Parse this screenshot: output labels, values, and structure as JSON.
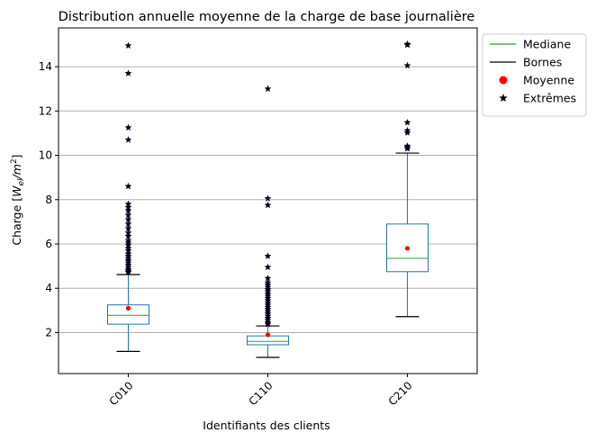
{
  "chart_data": {
    "type": "box",
    "title": "Distribution annuelle moyenne de la charge de base journalière",
    "xlabel": "Identifiants des clients",
    "ylabel_prefix": "Charge [",
    "ylabel_unit_base": "W",
    "ylabel_unit_sub": "el",
    "ylabel_unit_div": "/m",
    "ylabel_unit_sup": "2",
    "ylabel_suffix": "]",
    "ylim": [
      0.15,
      15.75
    ],
    "yticks": [
      2,
      4,
      6,
      8,
      10,
      12,
      14
    ],
    "grid_y": true,
    "categories": [
      "C010",
      "C110",
      "C210"
    ],
    "boxes": [
      {
        "category": "C010",
        "whisker_low": 1.15,
        "q1": 2.38,
        "median": 2.78,
        "q3": 3.25,
        "whisker_high": 4.62,
        "mean": 3.1,
        "outliers": [
          14.95,
          13.7,
          11.25,
          10.7,
          8.6,
          7.8,
          7.65,
          7.5,
          7.3,
          7.1,
          6.9,
          6.7,
          6.5,
          6.35,
          6.15,
          6.05,
          5.95,
          5.8,
          5.7,
          5.55,
          5.45,
          5.35,
          5.25,
          5.15,
          5.05,
          4.95,
          4.85,
          4.78,
          4.72
        ]
      },
      {
        "category": "C110",
        "whisker_low": 0.88,
        "q1": 1.45,
        "median": 1.6,
        "q3": 1.85,
        "whisker_high": 2.3,
        "mean": 1.9,
        "outliers": [
          13.0,
          8.05,
          7.75,
          5.45,
          4.95,
          4.45,
          4.25,
          4.15,
          4.05,
          3.95,
          3.85,
          3.75,
          3.65,
          3.55,
          3.45,
          3.35,
          3.25,
          3.15,
          3.05,
          2.95,
          2.85,
          2.75,
          2.65,
          2.55,
          2.45,
          2.38
        ]
      },
      {
        "category": "C210",
        "whisker_low": 2.72,
        "q1": 4.75,
        "median": 5.35,
        "q3": 6.9,
        "whisker_high": 10.1,
        "mean": 5.8,
        "outliers": [
          15.02,
          14.98,
          14.05,
          11.48,
          11.12,
          11.02,
          10.42,
          10.36,
          10.3
        ]
      }
    ],
    "legend": {
      "placement": "outside-right-top",
      "entries": [
        {
          "label": "Mediane",
          "kind": "line",
          "color": "#2ca02c"
        },
        {
          "label": "Bornes",
          "kind": "line",
          "color": "#000000"
        },
        {
          "label": "Moyenne",
          "kind": "dot",
          "color": "#ff0000"
        },
        {
          "label": "Extrêmes",
          "kind": "star",
          "color": "#000000"
        }
      ]
    },
    "colors": {
      "box": "#1f77b4",
      "median": "#2ca02c",
      "mean": "#ff0000",
      "cap": "#000000",
      "outlier": "#000000",
      "grid": "#b0b0b0"
    }
  }
}
